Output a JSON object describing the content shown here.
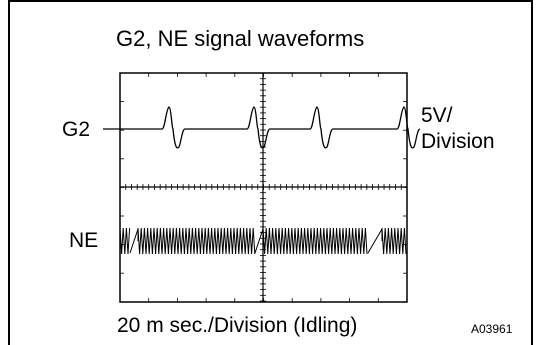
{
  "title": "G2, NE signal waveforms",
  "channel_g2": "G2",
  "channel_ne": "NE",
  "voltage_scale_line1": "5V/",
  "voltage_scale_line2": "Division",
  "time_scale": "20 m sec./Division (Idling)",
  "figure_id": "A03961",
  "colors": {
    "ink": "#000000",
    "background": "#ffffff"
  }
}
